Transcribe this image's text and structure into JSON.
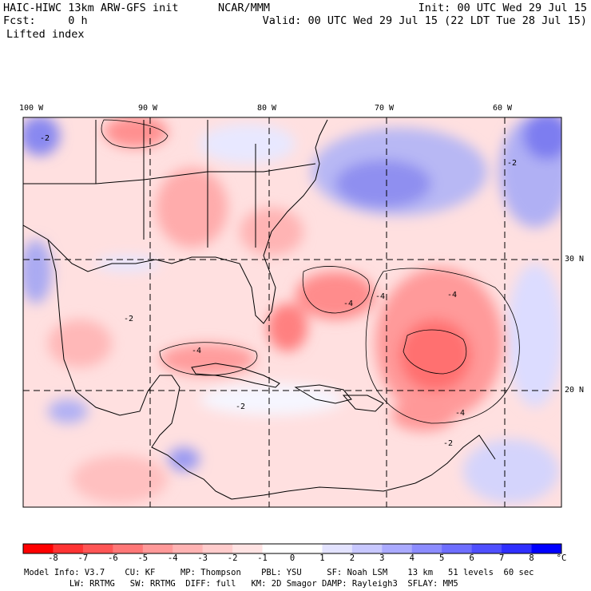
{
  "header": {
    "model_title": "HAIC-HIWC 13km ARW-GFS init",
    "org": "NCAR/MMM",
    "init": "Init: 00 UTC Wed 29 Jul 15",
    "fcst": "Fcst:     0 h",
    "valid": "Valid: 00 UTC Wed 29 Jul 15 (22 LDT Tue 28 Jul 15)",
    "field": "Lifted index"
  },
  "map": {
    "lon_labels": [
      "100 W",
      "90 W",
      "80 W",
      "70 W",
      "60 W"
    ],
    "lat_labels": [
      "30 N",
      "20 N"
    ],
    "contour_labels": [
      "-2",
      "-4"
    ]
  },
  "colorbar": {
    "ticks": [
      "-8",
      "-7",
      "-6",
      "-5",
      "-4",
      "-3",
      "-2",
      "-1",
      "0",
      "1",
      "2",
      "3",
      "4",
      "5",
      "6",
      "7",
      "8"
    ],
    "unit": "°C",
    "colors": [
      "#ff0000",
      "#ff3333",
      "#ff5555",
      "#ff7777",
      "#ff9999",
      "#ffb3b3",
      "#ffcccc",
      "#ffe3e3",
      "#ffffff",
      "#ffffff",
      "#e3e3ff",
      "#c8c8ff",
      "#aaaaff",
      "#8c8cff",
      "#6e6eff",
      "#4f4fff",
      "#2f2fff",
      "#0000ff"
    ]
  },
  "footer": {
    "line1": "Model Info: V3.7    CU: KF     MP: Thompson    PBL: YSU     SF: Noah LSM    13 km   51 levels  60 sec",
    "line2": "         LW: RRTMG   SW: RRTMG  DIFF: full   KM: 2D Smagor DAMP: Rayleigh3  SFLAY: MM5"
  }
}
